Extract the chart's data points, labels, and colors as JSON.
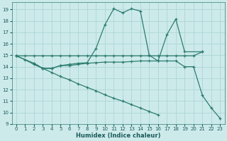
{
  "xlabel": "Humidex (Indice chaleur)",
  "bg_color": "#cdeaea",
  "grid_color": "#b0d8d8",
  "line_color": "#2d7d6e",
  "xlim": [
    -0.5,
    23.5
  ],
  "ylim": [
    9,
    19.6
  ],
  "xticks": [
    0,
    1,
    2,
    3,
    4,
    5,
    6,
    7,
    8,
    9,
    10,
    11,
    12,
    13,
    14,
    15,
    16,
    17,
    18,
    19,
    20,
    21,
    22,
    23
  ],
  "yticks": [
    9,
    10,
    11,
    12,
    13,
    14,
    15,
    16,
    17,
    18,
    19
  ],
  "lines": [
    {
      "x": [
        0,
        1,
        2,
        3,
        4,
        5,
        6,
        7,
        8,
        9,
        10,
        11,
        12,
        13,
        14,
        15,
        16,
        17,
        18,
        19,
        20,
        21
      ],
      "y": [
        14.95,
        14.95,
        14.95,
        14.95,
        14.95,
        14.95,
        14.95,
        14.95,
        14.95,
        14.95,
        14.95,
        14.95,
        14.95,
        14.95,
        14.95,
        14.95,
        14.95,
        14.95,
        14.95,
        14.95,
        14.95,
        15.3
      ]
    },
    {
      "x": [
        2,
        3,
        4,
        5,
        6,
        7,
        8,
        9,
        10,
        11,
        12,
        13,
        14,
        15,
        16,
        17,
        18,
        19,
        20,
        21,
        22,
        23
      ],
      "y": [
        14.3,
        13.85,
        13.85,
        14.1,
        14.1,
        14.2,
        14.3,
        14.35,
        14.4,
        14.4,
        14.4,
        14.45,
        14.5,
        14.5,
        14.5,
        14.5,
        14.5,
        14.0,
        14.0,
        11.5,
        10.4,
        9.5
      ]
    },
    {
      "x": [
        0,
        2,
        3,
        4,
        5,
        6,
        7,
        8,
        9,
        10,
        11,
        12,
        13,
        14,
        15,
        16,
        17,
        18,
        19,
        21
      ],
      "y": [
        14.95,
        14.3,
        13.85,
        13.85,
        14.1,
        14.2,
        14.3,
        14.35,
        15.6,
        17.65,
        19.05,
        18.7,
        19.05,
        18.85,
        15.0,
        14.5,
        16.8,
        18.15,
        15.3,
        15.3
      ]
    },
    {
      "x": [
        0,
        1,
        2,
        3,
        4,
        5,
        6,
        7,
        8,
        9,
        10,
        11,
        12,
        13,
        14,
        15,
        16,
        17,
        18,
        19,
        20,
        21,
        22,
        23
      ],
      "y": [
        14.95,
        14.6,
        14.2,
        13.85,
        13.5,
        13.15,
        12.85,
        12.5,
        12.2,
        11.9,
        11.55,
        11.25,
        11.0,
        10.7,
        10.4,
        10.1,
        9.8,
        null,
        null,
        null,
        null,
        null,
        null,
        null
      ]
    }
  ]
}
